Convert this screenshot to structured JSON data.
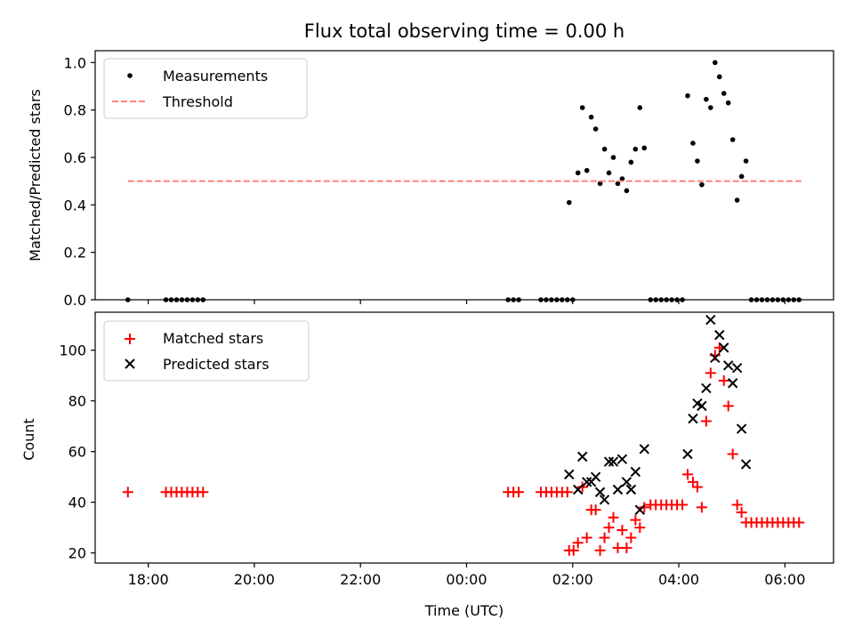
{
  "chart_data": [
    {
      "type": "scatter",
      "title": "Flux total observing time = 0.00 h",
      "xlabel": "",
      "ylabel": "Matched/Predicted stars",
      "xlim": [
        "17:00",
        "06:55"
      ],
      "ylim": [
        0,
        1.05
      ],
      "xticks": [
        "18:00",
        "20:00",
        "22:00",
        "00:00",
        "02:00",
        "04:00",
        "06:00"
      ],
      "yticks": [
        "0.0",
        "0.2",
        "0.4",
        "0.6",
        "0.8",
        "1.0"
      ],
      "legend_position": "upper-left",
      "series": [
        {
          "name": "Measurements",
          "marker": "dot",
          "color": "#000000",
          "points": [
            [
              "17:37",
              0.0
            ],
            [
              "18:20",
              0.0
            ],
            [
              "18:26",
              0.0
            ],
            [
              "18:32",
              0.0
            ],
            [
              "18:38",
              0.0
            ],
            [
              "18:44",
              0.0
            ],
            [
              "18:50",
              0.0
            ],
            [
              "18:56",
              0.0
            ],
            [
              "19:02",
              0.0
            ],
            [
              "00:47",
              0.0
            ],
            [
              "00:53",
              0.0
            ],
            [
              "00:59",
              0.0
            ],
            [
              "01:24",
              0.0
            ],
            [
              "01:30",
              0.0
            ],
            [
              "01:36",
              0.0
            ],
            [
              "01:42",
              0.0
            ],
            [
              "01:48",
              0.0
            ],
            [
              "01:54",
              0.0
            ],
            [
              "02:00",
              0.0
            ],
            [
              "01:56",
              0.41
            ],
            [
              "02:06",
              0.535
            ],
            [
              "02:11",
              0.81
            ],
            [
              "02:16",
              0.545
            ],
            [
              "02:21",
              0.77
            ],
            [
              "02:26",
              0.72
            ],
            [
              "02:31",
              0.49
            ],
            [
              "02:36",
              0.635
            ],
            [
              "02:41",
              0.535
            ],
            [
              "02:46",
              0.6
            ],
            [
              "02:51",
              0.49
            ],
            [
              "02:56",
              0.51
            ],
            [
              "03:01",
              0.46
            ],
            [
              "03:06",
              0.58
            ],
            [
              "03:11",
              0.635
            ],
            [
              "03:16",
              0.81
            ],
            [
              "03:21",
              0.64
            ],
            [
              "03:28",
              0.0
            ],
            [
              "03:34",
              0.0
            ],
            [
              "03:40",
              0.0
            ],
            [
              "03:46",
              0.0
            ],
            [
              "03:52",
              0.0
            ],
            [
              "03:58",
              0.0
            ],
            [
              "04:04",
              0.0
            ],
            [
              "04:10",
              0.86
            ],
            [
              "04:16",
              0.66
            ],
            [
              "04:21",
              0.585
            ],
            [
              "04:26",
              0.485
            ],
            [
              "04:31",
              0.845
            ],
            [
              "04:36",
              0.81
            ],
            [
              "04:41",
              1.0
            ],
            [
              "04:46",
              0.94
            ],
            [
              "04:51",
              0.87
            ],
            [
              "04:56",
              0.83
            ],
            [
              "05:01",
              0.675
            ],
            [
              "05:06",
              0.42
            ],
            [
              "05:11",
              0.52
            ],
            [
              "05:16",
              0.585
            ],
            [
              "05:22",
              0.0
            ],
            [
              "05:28",
              0.0
            ],
            [
              "05:34",
              0.0
            ],
            [
              "05:40",
              0.0
            ],
            [
              "05:46",
              0.0
            ],
            [
              "05:52",
              0.0
            ],
            [
              "05:58",
              0.0
            ],
            [
              "06:04",
              0.0
            ],
            [
              "06:10",
              0.0
            ],
            [
              "06:16",
              0.0
            ]
          ]
        },
        {
          "name": "Threshold",
          "marker": "dashed-line",
          "color": "#ff7f7f",
          "points": [
            [
              "17:37",
              0.5
            ],
            [
              "06:20",
              0.5
            ]
          ]
        }
      ]
    },
    {
      "type": "scatter",
      "title": "",
      "xlabel": "Time (UTC)",
      "ylabel": "Count",
      "xlim": [
        "17:00",
        "06:55"
      ],
      "ylim": [
        16,
        115
      ],
      "xticks": [
        "18:00",
        "20:00",
        "22:00",
        "00:00",
        "02:00",
        "04:00",
        "06:00"
      ],
      "yticks": [
        "20",
        "40",
        "60",
        "80",
        "100"
      ],
      "legend_position": "upper-left",
      "series": [
        {
          "name": "Matched stars",
          "marker": "plus",
          "color": "#ff0000",
          "points": [
            [
              "17:37",
              44
            ],
            [
              "18:20",
              44
            ],
            [
              "18:26",
              44
            ],
            [
              "18:32",
              44
            ],
            [
              "18:38",
              44
            ],
            [
              "18:44",
              44
            ],
            [
              "18:50",
              44
            ],
            [
              "18:56",
              44
            ],
            [
              "19:02",
              44
            ],
            [
              "00:47",
              44
            ],
            [
              "00:53",
              44
            ],
            [
              "00:59",
              44
            ],
            [
              "01:24",
              44
            ],
            [
              "01:30",
              44
            ],
            [
              "01:36",
              44
            ],
            [
              "01:42",
              44
            ],
            [
              "01:48",
              44
            ],
            [
              "01:54",
              44
            ],
            [
              "01:56",
              21
            ],
            [
              "02:01",
              21
            ],
            [
              "02:06",
              24
            ],
            [
              "02:11",
              46
            ],
            [
              "02:16",
              26
            ],
            [
              "02:21",
              37
            ],
            [
              "02:26",
              37
            ],
            [
              "02:31",
              21
            ],
            [
              "02:36",
              26
            ],
            [
              "02:41",
              30
            ],
            [
              "02:46",
              34
            ],
            [
              "02:51",
              22
            ],
            [
              "02:56",
              29
            ],
            [
              "03:01",
              22
            ],
            [
              "03:06",
              26
            ],
            [
              "03:11",
              33
            ],
            [
              "03:16",
              30
            ],
            [
              "03:21",
              38
            ],
            [
              "03:28",
              39
            ],
            [
              "03:34",
              39
            ],
            [
              "03:40",
              39
            ],
            [
              "03:46",
              39
            ],
            [
              "03:52",
              39
            ],
            [
              "03:58",
              39
            ],
            [
              "04:04",
              39
            ],
            [
              "04:10",
              51
            ],
            [
              "04:16",
              48
            ],
            [
              "04:21",
              46
            ],
            [
              "04:26",
              38
            ],
            [
              "04:31",
              72
            ],
            [
              "04:36",
              91
            ],
            [
              "04:41",
              98
            ],
            [
              "04:46",
              101
            ],
            [
              "04:51",
              88
            ],
            [
              "04:56",
              78
            ],
            [
              "05:01",
              59
            ],
            [
              "05:06",
              39
            ],
            [
              "05:11",
              36
            ],
            [
              "05:16",
              32
            ],
            [
              "05:22",
              32
            ],
            [
              "05:28",
              32
            ],
            [
              "05:34",
              32
            ],
            [
              "05:40",
              32
            ],
            [
              "05:46",
              32
            ],
            [
              "05:52",
              32
            ],
            [
              "05:58",
              32
            ],
            [
              "06:04",
              32
            ],
            [
              "06:10",
              32
            ],
            [
              "06:16",
              32
            ]
          ]
        },
        {
          "name": "Predicted stars",
          "marker": "x",
          "color": "#000000",
          "points": [
            [
              "01:56",
              51
            ],
            [
              "02:06",
              45
            ],
            [
              "02:11",
              58
            ],
            [
              "02:16",
              48
            ],
            [
              "02:21",
              48
            ],
            [
              "02:26",
              50
            ],
            [
              "02:31",
              44
            ],
            [
              "02:36",
              41
            ],
            [
              "02:41",
              56
            ],
            [
              "02:46",
              56
            ],
            [
              "02:51",
              45
            ],
            [
              "02:56",
              57
            ],
            [
              "03:01",
              48
            ],
            [
              "03:06",
              45
            ],
            [
              "03:11",
              52
            ],
            [
              "03:16",
              37
            ],
            [
              "03:21",
              61
            ],
            [
              "04:10",
              59
            ],
            [
              "04:16",
              73
            ],
            [
              "04:21",
              79
            ],
            [
              "04:26",
              78
            ],
            [
              "04:31",
              85
            ],
            [
              "04:36",
              112
            ],
            [
              "04:41",
              97
            ],
            [
              "04:46",
              106
            ],
            [
              "04:51",
              101
            ],
            [
              "04:56",
              94
            ],
            [
              "05:01",
              87
            ],
            [
              "05:06",
              93
            ],
            [
              "05:11",
              69
            ],
            [
              "05:16",
              55
            ]
          ]
        }
      ]
    }
  ]
}
